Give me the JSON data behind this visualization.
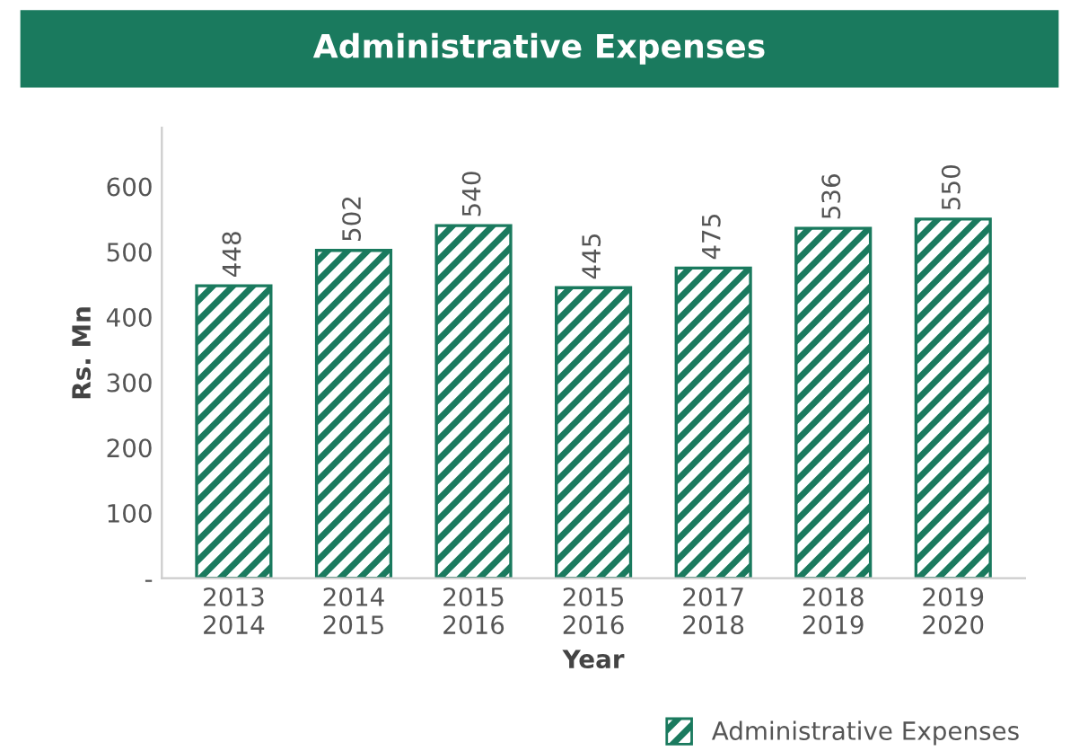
{
  "chart_data": {
    "type": "bar",
    "title": "Administrative Expenses",
    "xlabel": "Year",
    "ylabel": "Rs. Mn",
    "categories": [
      "2013\n2014",
      "2014\n2015",
      "2015\n2016",
      "2015\n2016",
      "2017\n2018",
      "2018\n2019",
      "2019\n2020"
    ],
    "series": [
      {
        "name": "Administrative Expenses",
        "color": "#1a7a5e",
        "values": [
          448,
          502,
          540,
          445,
          475,
          536,
          550
        ]
      }
    ],
    "ylim": [
      0,
      690
    ],
    "yticks": [
      {
        "value": 0,
        "label": "-"
      },
      100,
      200,
      300,
      400,
      500,
      600
    ],
    "data_labels": true,
    "legend": "bottom right",
    "grid": false
  }
}
